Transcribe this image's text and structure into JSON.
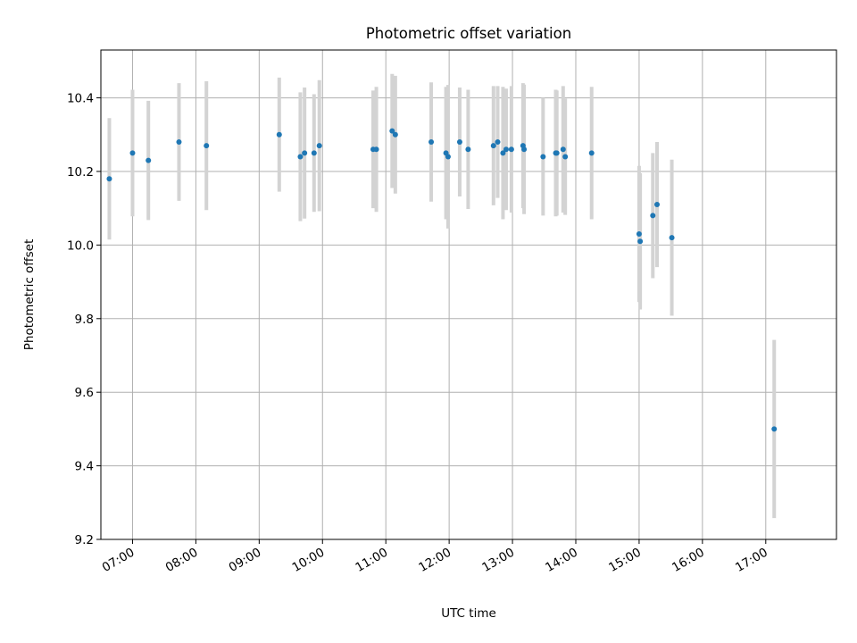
{
  "chart_data": {
    "type": "scatter",
    "title": "Photometric offset variation",
    "xlabel": "UTC time",
    "ylabel": "Photometric offset",
    "xlim": [
      "06:30",
      "18:07"
    ],
    "ylim": [
      9.2,
      10.53
    ],
    "grid": true,
    "x_ticks": [
      "07:00",
      "08:00",
      "09:00",
      "10:00",
      "11:00",
      "12:00",
      "13:00",
      "14:00",
      "15:00",
      "16:00",
      "17:00"
    ],
    "y_ticks": [
      "9.2",
      "9.4",
      "9.6",
      "9.8",
      "10.0",
      "10.2",
      "10.4"
    ],
    "colors": {
      "points": "#1f77b4",
      "error_bars": "#d3d3d3",
      "grid": "#b0b0b0"
    },
    "series": [
      {
        "points": [
          {
            "x": "06:38",
            "y": 10.18,
            "err": 0.165
          },
          {
            "x": "07:00",
            "y": 10.25,
            "err": 0.172
          },
          {
            "x": "07:15",
            "y": 10.23,
            "err": 0.162
          },
          {
            "x": "07:44",
            "y": 10.28,
            "err": 0.16
          },
          {
            "x": "08:10",
            "y": 10.27,
            "err": 0.175
          },
          {
            "x": "09:19",
            "y": 10.3,
            "err": 0.155
          },
          {
            "x": "09:39",
            "y": 10.24,
            "err": 0.175
          },
          {
            "x": "09:43",
            "y": 10.25,
            "err": 0.178
          },
          {
            "x": "09:52",
            "y": 10.25,
            "err": 0.16
          },
          {
            "x": "09:57",
            "y": 10.27,
            "err": 0.178
          },
          {
            "x": "10:48",
            "y": 10.26,
            "err": 0.16
          },
          {
            "x": "10:51",
            "y": 10.26,
            "err": 0.17
          },
          {
            "x": "11:06",
            "y": 10.31,
            "err": 0.155
          },
          {
            "x": "11:09",
            "y": 10.3,
            "err": 0.16
          },
          {
            "x": "11:43",
            "y": 10.28,
            "err": 0.162
          },
          {
            "x": "11:57",
            "y": 10.25,
            "err": 0.18
          },
          {
            "x": "11:59",
            "y": 10.24,
            "err": 0.195
          },
          {
            "x": "12:10",
            "y": 10.28,
            "err": 0.148
          },
          {
            "x": "12:18",
            "y": 10.26,
            "err": 0.162
          },
          {
            "x": "12:42",
            "y": 10.27,
            "err": 0.162
          },
          {
            "x": "12:46",
            "y": 10.28,
            "err": 0.152
          },
          {
            "x": "12:51",
            "y": 10.25,
            "err": 0.18
          },
          {
            "x": "12:54",
            "y": 10.26,
            "err": 0.165
          },
          {
            "x": "12:59",
            "y": 10.26,
            "err": 0.172
          },
          {
            "x": "13:10",
            "y": 10.27,
            "err": 0.17
          },
          {
            "x": "13:11",
            "y": 10.26,
            "err": 0.176
          },
          {
            "x": "13:29",
            "y": 10.24,
            "err": 0.16
          },
          {
            "x": "13:41",
            "y": 10.25,
            "err": 0.172
          },
          {
            "x": "13:42",
            "y": 10.25,
            "err": 0.17
          },
          {
            "x": "13:48",
            "y": 10.26,
            "err": 0.172
          },
          {
            "x": "13:50",
            "y": 10.24,
            "err": 0.158
          },
          {
            "x": "14:15",
            "y": 10.25,
            "err": 0.18
          },
          {
            "x": "15:00",
            "y": 10.03,
            "err": 0.185
          },
          {
            "x": "15:01",
            "y": 10.01,
            "err": 0.185
          },
          {
            "x": "15:13",
            "y": 10.08,
            "err": 0.17
          },
          {
            "x": "15:17",
            "y": 10.11,
            "err": 0.17
          },
          {
            "x": "15:31",
            "y": 10.02,
            "err": 0.212
          },
          {
            "x": "17:08",
            "y": 9.5,
            "err": 0.242
          }
        ]
      }
    ]
  }
}
